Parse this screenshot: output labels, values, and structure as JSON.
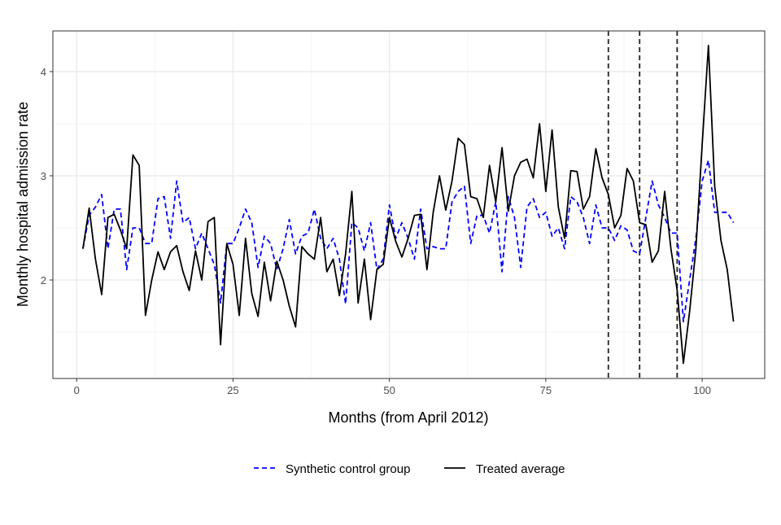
{
  "chart_data": {
    "type": "line",
    "title": "",
    "xlabel": "Months (from April 2012)",
    "ylabel": "Monthly hospital admission rate",
    "xlim": [
      -3.8,
      110
    ],
    "ylim": [
      1.055,
      4.39
    ],
    "xticks": [
      0,
      25,
      50,
      75,
      100
    ],
    "yticks": [
      2,
      3,
      4
    ],
    "grid": true,
    "legend_position": "bottom",
    "vlines": [
      85,
      90,
      96
    ],
    "series": [
      {
        "name": "Synthetic control group",
        "color": "#0000ff",
        "style": "dashed",
        "values": [
          2.3,
          2.62,
          2.7,
          2.82,
          2.3,
          2.68,
          2.68,
          2.1,
          2.5,
          2.5,
          2.35,
          2.35,
          2.78,
          2.8,
          2.4,
          2.95,
          2.55,
          2.6,
          2.3,
          2.45,
          2.3,
          2.15,
          1.78,
          2.35,
          2.35,
          2.5,
          2.68,
          2.55,
          2.12,
          2.42,
          2.35,
          2.1,
          2.3,
          2.58,
          2.25,
          2.42,
          2.45,
          2.68,
          2.4,
          2.3,
          2.4,
          2.2,
          1.77,
          2.55,
          2.5,
          2.28,
          2.55,
          2.1,
          2.2,
          2.72,
          2.4,
          2.55,
          2.4,
          2.2,
          2.68,
          2.3,
          2.32,
          2.3,
          2.3,
          2.75,
          2.85,
          2.9,
          2.35,
          2.62,
          2.62,
          2.45,
          2.75,
          2.08,
          2.8,
          2.6,
          2.12,
          2.7,
          2.78,
          2.6,
          2.65,
          2.42,
          2.5,
          2.3,
          2.8,
          2.75,
          2.6,
          2.35,
          2.72,
          2.5,
          2.5,
          2.38,
          2.52,
          2.48,
          2.28,
          2.25,
          2.6,
          2.95,
          2.72,
          2.6,
          2.45,
          2.45,
          1.6,
          2.0,
          2.4,
          2.95,
          3.15,
          2.65,
          2.65,
          2.65,
          2.55
        ]
      },
      {
        "name": "Treated average",
        "color": "#000000",
        "style": "solid",
        "values": [
          2.3,
          2.69,
          2.2,
          1.86,
          2.6,
          2.63,
          2.48,
          2.3,
          3.2,
          3.1,
          1.66,
          2.0,
          2.27,
          2.1,
          2.27,
          2.33,
          2.08,
          1.9,
          2.28,
          2.0,
          2.56,
          2.6,
          1.38,
          2.35,
          2.15,
          1.66,
          2.4,
          1.87,
          1.65,
          2.17,
          1.8,
          2.18,
          2.0,
          1.75,
          1.55,
          2.32,
          2.25,
          2.2,
          2.6,
          2.08,
          2.2,
          1.85,
          2.25,
          2.85,
          1.78,
          2.2,
          1.62,
          2.1,
          2.15,
          2.6,
          2.37,
          2.22,
          2.4,
          2.62,
          2.63,
          2.1,
          2.65,
          3.0,
          2.67,
          2.95,
          3.36,
          3.3,
          2.8,
          2.78,
          2.6,
          3.1,
          2.75,
          3.27,
          2.66,
          3.0,
          3.13,
          3.16,
          2.98,
          3.5,
          2.85,
          3.44,
          2.7,
          2.4,
          3.05,
          3.04,
          2.68,
          2.8,
          3.26,
          2.98,
          2.82,
          2.5,
          2.62,
          3.07,
          2.95,
          2.55,
          2.53,
          2.17,
          2.28,
          2.85,
          2.3,
          1.9,
          1.2,
          1.7,
          2.3,
          3.3,
          4.25,
          2.9,
          2.38,
          2.1,
          1.6
        ]
      }
    ]
  }
}
